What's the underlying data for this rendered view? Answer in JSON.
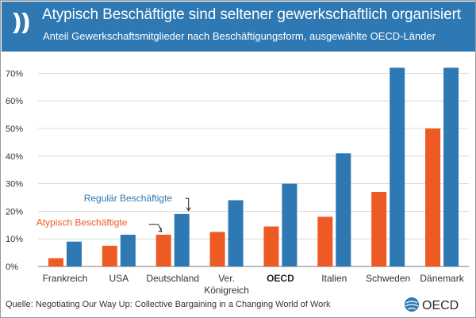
{
  "header": {
    "title": "Atypisch Beschäftigte sind seltener gewerkschaftlich organisiert",
    "subtitle": "Anteil Gewerkschaftsmitglieder nach Beschäftigungsform, ausgewählte OECD-Länder"
  },
  "footer": {
    "source": "Quelle: Negotiating Our Way Up: Collective Bargaining in a Changing World of Work",
    "logo_text": "OECD"
  },
  "colors": {
    "header_bg": "#2e78b3",
    "regular": "#2e78b3",
    "atypical": "#ee5a24",
    "grid": "#d0d0d0"
  },
  "chart_data": {
    "type": "bar",
    "categories": [
      "Frankreich",
      "USA",
      "Deutschland",
      "Ver. Königreich",
      "OECD",
      "Italien",
      "Schweden",
      "Dänemark"
    ],
    "category_lines": [
      [
        "Frankreich"
      ],
      [
        "USA"
      ],
      [
        "Deutschland"
      ],
      [
        "Ver.",
        "Königreich"
      ],
      [
        "OECD"
      ],
      [
        "Italien"
      ],
      [
        "Schweden"
      ],
      [
        "Dänemark"
      ]
    ],
    "bold_category": "OECD",
    "series": [
      {
        "name": "Atypisch Beschäftigte",
        "values": [
          3,
          7.5,
          11.5,
          12.5,
          14.5,
          18,
          27,
          50
        ]
      },
      {
        "name": "Regulär Beschäftigte",
        "values": [
          9,
          11.5,
          19,
          24,
          30,
          41,
          72,
          72
        ]
      }
    ],
    "yticks": [
      "0%",
      "10%",
      "20%",
      "30%",
      "40%",
      "50%",
      "60%",
      "70%"
    ],
    "ylim": [
      0,
      75
    ],
    "grid": true,
    "legend": "inline labels with arrows near Deutschland"
  }
}
